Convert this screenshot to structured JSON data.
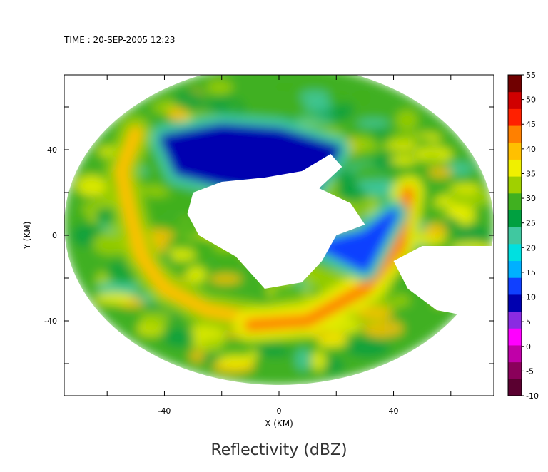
{
  "time_label": "TIME : 20-SEP-2005 12:23",
  "chart_data": {
    "type": "heatmap",
    "title": "Reflectivity (dBZ)",
    "xlabel": "X (KM)",
    "ylabel": "Y (KM)",
    "xlim": [
      -75,
      75
    ],
    "ylim": [
      -75,
      75
    ],
    "x_ticks": [
      -40,
      0,
      40
    ],
    "y_ticks": [
      40,
      0,
      -40
    ],
    "grid": false,
    "colorbar": {
      "min": -10,
      "max": 55,
      "ticks": [
        55,
        50,
        45,
        40,
        35,
        30,
        25,
        20,
        15,
        10,
        5,
        0,
        -5,
        -10
      ],
      "colors": [
        "#5a0030",
        "#8a005a",
        "#c000a8",
        "#ff00ff",
        "#8a2be2",
        "#0000b0",
        "#1040ff",
        "#00b0ff",
        "#00e0e0",
        "#40c8a0",
        "#00a040",
        "#40b020",
        "#a0d000",
        "#f0f000",
        "#ffc000",
        "#ff8000",
        "#ff2000",
        "#d00000",
        "#700000"
      ]
    },
    "field": {
      "center": [
        0,
        5
      ],
      "radius_km": 75,
      "eye_center": [
        0,
        15
      ],
      "features": [
        {
          "kind": "rainband",
          "points": [
            [
              -50,
              48
            ],
            [
              -55,
              30
            ],
            [
              -52,
              10
            ],
            [
              -48,
              -10
            ],
            [
              -40,
              -25
            ],
            [
              -25,
              -35
            ],
            [
              -5,
              -40
            ],
            [
              15,
              -35
            ],
            [
              35,
              -15
            ]
          ],
          "dbz": 38
        },
        {
          "kind": "rainband",
          "points": [
            [
              -10,
              -42
            ],
            [
              10,
              -40
            ],
            [
              30,
              -25
            ],
            [
              42,
              -5
            ],
            [
              45,
              20
            ]
          ],
          "dbz": 42
        },
        {
          "kind": "weak_echo",
          "points": [
            [
              -40,
              45
            ],
            [
              -20,
              50
            ],
            [
              0,
              48
            ],
            [
              20,
              40
            ],
            [
              10,
              20
            ],
            [
              -20,
              25
            ],
            [
              -35,
              30
            ]
          ],
          "dbz": 10
        },
        {
          "kind": "weak_echo",
          "points": [
            [
              15,
              -5
            ],
            [
              30,
              0
            ],
            [
              40,
              10
            ],
            [
              30,
              -15
            ]
          ],
          "dbz": 12
        }
      ]
    }
  }
}
